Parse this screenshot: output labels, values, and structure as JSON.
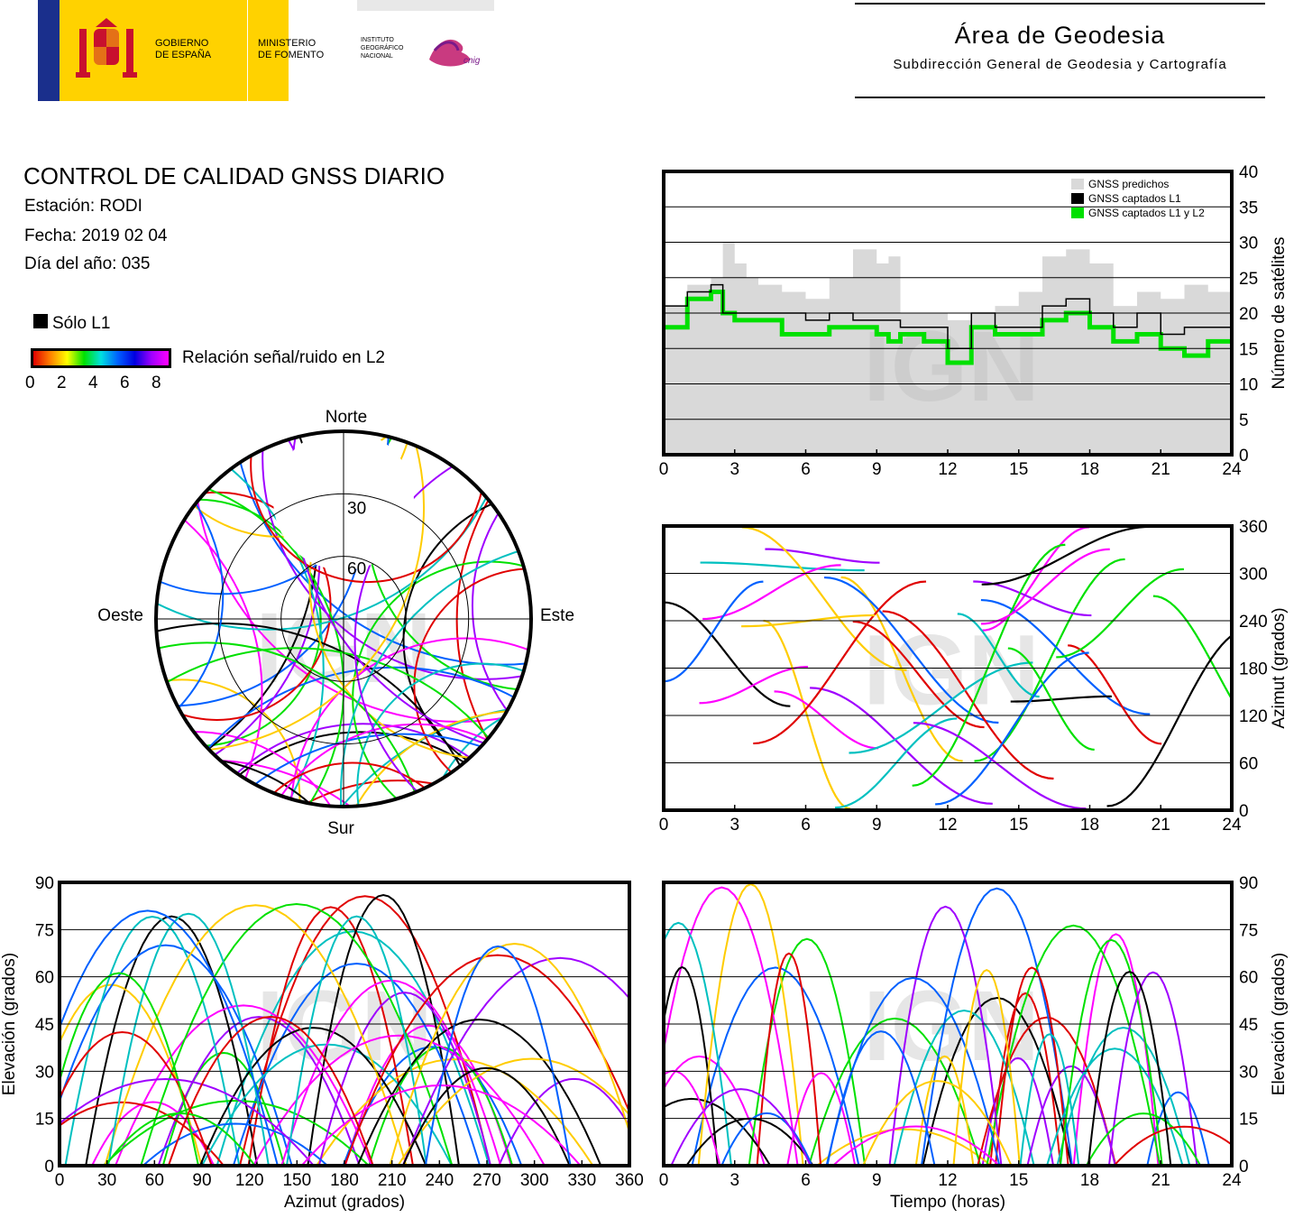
{
  "header": {
    "gov_line1": "GOBIERNO",
    "gov_line2": "DE ESPAÑA",
    "min_line1": "MINISTERIO",
    "min_line2": "DE FOMENTO",
    "ign_line1": "INSTITUTO",
    "ign_line2": "GEOGRÁFICO",
    "ign_line3": "NACIONAL",
    "cnig": "cnig",
    "area_title": "Área de Geodesia",
    "area_subtitle": "Subdirección General de Geodesia y Cartografía"
  },
  "report": {
    "title": "CONTROL DE CALIDAD GNSS DIARIO",
    "station": "Estación: RODI",
    "date": "Fecha: 2019 02 04",
    "doy": "Día del año: 035"
  },
  "legend": {
    "l1_only": "Sólo L1",
    "snr_label": "Relación señal/ruido en L2",
    "snr_ticks": [
      "0",
      "2",
      "4",
      "6",
      "8"
    ],
    "snr_colors": [
      "#e00000",
      "#ff8000",
      "#ffff00",
      "#00e000",
      "#00e0e0",
      "#0060ff",
      "#0000e0",
      "#a000ff",
      "#ff00ff"
    ]
  },
  "watermark": "IGN",
  "colors": {
    "predicted": "#d9d9d9",
    "l1": "#000000",
    "l1l2": "#00e000"
  },
  "chart_data": [
    {
      "type": "area",
      "id": "satellite-count",
      "ylabel": "Número de satélites",
      "x_ticks": [
        "0",
        "3",
        "6",
        "9",
        "12",
        "15",
        "18",
        "21",
        "24"
      ],
      "y_ticks": [
        "0",
        "5",
        "10",
        "15",
        "20",
        "25",
        "30",
        "35",
        "40"
      ],
      "xlim": [
        0,
        24
      ],
      "ylim": [
        0,
        40
      ],
      "legend": [
        "GNSS predichos",
        "GNSS captados L1",
        "GNSS captados L1 y L2"
      ],
      "x": [
        0,
        1,
        2,
        2.5,
        3,
        3.5,
        4,
        5,
        6,
        7,
        8,
        9,
        9.5,
        10,
        11,
        12,
        13,
        14,
        15,
        16,
        17,
        18,
        19,
        20,
        21,
        22,
        23,
        24
      ],
      "series": [
        {
          "name": "GNSS predichos",
          "values": [
            21,
            24,
            25,
            30,
            27,
            25,
            24,
            23,
            22,
            25,
            29,
            27,
            28,
            20,
            20,
            19,
            20,
            21,
            23,
            28,
            29,
            27,
            21,
            23,
            22,
            24,
            23,
            24
          ]
        },
        {
          "name": "GNSS captados L1",
          "values": [
            21,
            23,
            24,
            20,
            20,
            20,
            20,
            20,
            19,
            20,
            19,
            19,
            19,
            18,
            18,
            15,
            20,
            18,
            18,
            21,
            22,
            20,
            18,
            20,
            17,
            18,
            18,
            20
          ]
        },
        {
          "name": "GNSS captados L1 y L2",
          "values": [
            18,
            22,
            23,
            20,
            19,
            19,
            19,
            17,
            17,
            18,
            18,
            17,
            16,
            17,
            16,
            13,
            18,
            17,
            17,
            19,
            20,
            18,
            16,
            17,
            15,
            14,
            16,
            19
          ]
        }
      ]
    },
    {
      "type": "scatter",
      "id": "azimuth-time",
      "ylabel": "Azimut (grados)",
      "x_ticks": [
        "0",
        "3",
        "6",
        "9",
        "12",
        "15",
        "18",
        "21",
        "24"
      ],
      "y_ticks": [
        "0",
        "60",
        "120",
        "180",
        "240",
        "300",
        "360"
      ],
      "xlim": [
        0,
        24
      ],
      "ylim": [
        0,
        360
      ]
    },
    {
      "type": "scatter",
      "id": "elevation-azimuth",
      "xlabel": "Azimut (grados)",
      "ylabel": "Elevación (grados)",
      "x_ticks": [
        "0",
        "30",
        "60",
        "90",
        "120",
        "150",
        "180",
        "210",
        "240",
        "270",
        "300",
        "330",
        "360"
      ],
      "y_ticks": [
        "0",
        "15",
        "30",
        "45",
        "60",
        "75",
        "90"
      ],
      "xlim": [
        0,
        360
      ],
      "ylim": [
        0,
        90
      ]
    },
    {
      "type": "scatter",
      "id": "elevation-time",
      "xlabel": "Tiempo (horas)",
      "ylabel": "Elevación (grados)",
      "x_ticks": [
        "0",
        "3",
        "6",
        "9",
        "12",
        "15",
        "18",
        "21",
        "24"
      ],
      "y_ticks": [
        "0",
        "15",
        "30",
        "45",
        "60",
        "75",
        "90"
      ],
      "xlim": [
        0,
        24
      ],
      "ylim": [
        0,
        90
      ]
    },
    {
      "type": "scatter",
      "id": "skyplot",
      "directions": {
        "north": "Norte",
        "south": "Sur",
        "east": "Este",
        "west": "Oeste"
      },
      "ring_labels": [
        "30",
        "60"
      ]
    }
  ]
}
